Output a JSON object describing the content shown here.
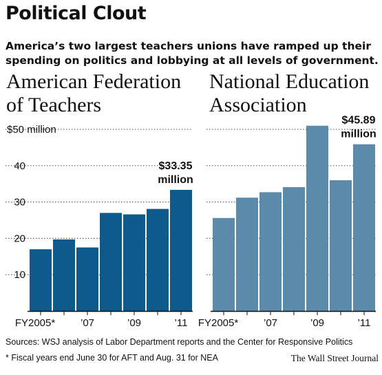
{
  "header": {
    "title": "Political Clout",
    "subtitle": "America’s two largest teachers unions have ramped up their spending on politics and lobbying at all levels of government."
  },
  "panels": [
    {
      "title_line1": "American Federation",
      "title_line2": "of Teachers"
    },
    {
      "title_line1": "National Education",
      "title_line2": "Association"
    }
  ],
  "footer": {
    "sources": "Sources: WSJ analysis of Labor Department reports and the Center for Responsive Politics",
    "note": "* Fiscal years end June 30 for AFT and Aug. 31 for NEA",
    "credit": "The Wall Street Journal"
  },
  "colors": {
    "aft": "#0c5b8c",
    "nea": "#5b8aaa",
    "grid": "#444444"
  },
  "chart_data": [
    {
      "type": "bar",
      "title": "American Federation of Teachers",
      "categories": [
        "2005",
        "2006",
        "2007",
        "2008",
        "2009",
        "2010",
        "2011"
      ],
      "values": [
        17.0,
        19.7,
        17.5,
        27.0,
        26.6,
        28.1,
        33.35
      ],
      "ylim": [
        0,
        50
      ],
      "yticks": [
        10,
        20,
        30,
        40,
        50
      ],
      "ytick_labels": [
        "10",
        "20",
        "30",
        "40",
        "$50 million"
      ],
      "xtick_labels": [
        "FY2005*",
        "",
        "’07",
        "",
        "’09",
        "",
        "’11"
      ],
      "annotation": {
        "category": "2011",
        "line1": "$33.35",
        "line2": "million"
      },
      "color": "#0c5b8c",
      "grid": true
    },
    {
      "type": "bar",
      "title": "National Education Association",
      "categories": [
        "2005",
        "2006",
        "2007",
        "2008",
        "2009",
        "2010",
        "2011"
      ],
      "values": [
        25.6,
        31.2,
        32.7,
        34.1,
        51.0,
        36.0,
        45.89
      ],
      "ylim": [
        0,
        50
      ],
      "yticks": [
        10,
        20,
        30,
        40,
        50
      ],
      "ytick_labels": [],
      "xtick_labels": [
        "FY2005*",
        "",
        "’07",
        "",
        "’09",
        "",
        "’11"
      ],
      "annotation": {
        "category": "2011",
        "line1": "$45.89",
        "line2": "million"
      },
      "color": "#5b8aaa",
      "grid": true
    }
  ]
}
